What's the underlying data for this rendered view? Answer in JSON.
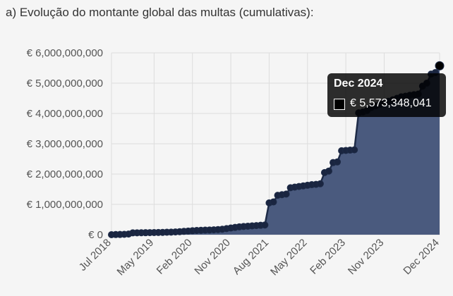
{
  "heading": "a) Evolução do montante global das multas (cumulativas):",
  "tooltip": {
    "title": "Dec 2024",
    "value": "€ 5,573,348,041"
  },
  "colors": {
    "fill": "#4a5a7e",
    "line": "#1e2b47",
    "point": "#1a2540",
    "grid": "#dddddd",
    "tooltip_bg": "#000000"
  },
  "chart_data": {
    "type": "area",
    "title": "",
    "xlabel": "",
    "ylabel": "",
    "ylim": [
      0,
      6000000000
    ],
    "yticks": [
      0,
      1000000000,
      2000000000,
      3000000000,
      4000000000,
      5000000000,
      6000000000
    ],
    "ytick_labels": [
      "€ 0",
      "€ 1,000,000,000",
      "€ 2,000,000,000",
      "€ 3,000,000,000",
      "€ 4,000,000,000",
      "€ 5,000,000,000",
      "€ 6,000,000,000"
    ],
    "xtick_labels": [
      "Jul 2018",
      "May 2019",
      "Feb 2020",
      "Nov 2020",
      "Aug 2021",
      "May 2022",
      "Feb 2023",
      "Nov 2023",
      "Dec 2024"
    ],
    "xtick_index": [
      0,
      10,
      19,
      28,
      37,
      46,
      55,
      64,
      77
    ],
    "grid": true,
    "legend": "none",
    "series": [
      {
        "values": [
          0,
          5000000,
          8000000,
          12000000,
          20000000,
          60000000,
          62000000,
          64000000,
          66000000,
          68000000,
          70000000,
          72000000,
          75000000,
          80000000,
          85000000,
          90000000,
          100000000,
          110000000,
          120000000,
          130000000,
          140000000,
          145000000,
          150000000,
          155000000,
          160000000,
          170000000,
          180000000,
          200000000,
          220000000,
          240000000,
          260000000,
          270000000,
          280000000,
          290000000,
          300000000,
          310000000,
          320000000,
          1050000000,
          1080000000,
          1300000000,
          1320000000,
          1340000000,
          1550000000,
          1570000000,
          1590000000,
          1610000000,
          1630000000,
          1650000000,
          1660000000,
          1680000000,
          2050000000,
          2100000000,
          2380000000,
          2400000000,
          2770000000,
          2780000000,
          2790000000,
          2800000000,
          4020000000,
          4050000000,
          4100000000,
          4200000000,
          4250000000,
          4300000000,
          4350000000,
          4400000000,
          4450000000,
          4500000000,
          4550000000,
          4570000000,
          4600000000,
          4620000000,
          4640000000,
          4900000000,
          5000000000,
          5300000000,
          5350000000,
          5573348041
        ]
      }
    ]
  }
}
